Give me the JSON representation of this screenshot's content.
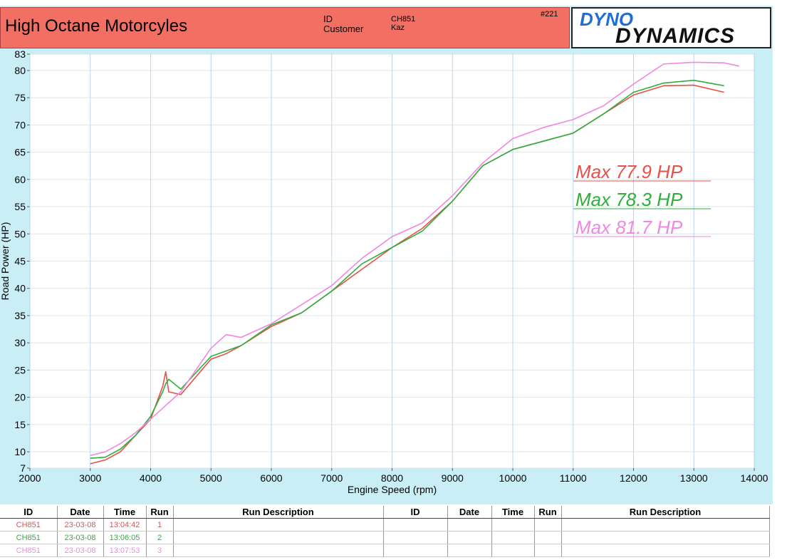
{
  "header": {
    "title": "High Octane Motorcyles",
    "id_label": "ID",
    "customer_label": "Customer",
    "id": "CH851",
    "customer": "Kaz",
    "number": "#221",
    "logo_top": "DYNO",
    "logo_bottom": "DYNAMICS"
  },
  "chart_data": {
    "type": "line",
    "x_label": "Engine Speed (rpm)",
    "y_label": "Road Power (HP)",
    "x": [
      3000,
      3250,
      3500,
      3750,
      4000,
      4200,
      4250,
      4300,
      4500,
      5000,
      5250,
      5500,
      6000,
      6500,
      7000,
      7500,
      8000,
      8500,
      9000,
      9500,
      10000,
      10500,
      11000,
      11500,
      12000,
      12500,
      13000,
      13500,
      13750
    ],
    "series": [
      {
        "color": "#e8504a",
        "values": [
          7.8,
          8.5,
          10,
          13,
          16,
          22,
          24.7,
          21,
          20.5,
          27,
          28,
          29.5,
          33,
          35.5,
          39.5,
          43.5,
          47.5,
          51,
          56,
          62.5,
          65.5,
          67,
          68.5,
          72,
          75.5,
          77.2,
          77.3,
          76,
          null
        ]
      },
      {
        "color": "#2fae3c",
        "values": [
          8.8,
          9,
          10.5,
          13,
          16.5,
          21,
          22.5,
          23.3,
          21.5,
          27.5,
          28.5,
          29.5,
          33.3,
          35.5,
          39.5,
          44.5,
          47.5,
          50.5,
          56,
          62.5,
          65.5,
          67,
          68.5,
          72,
          76,
          77.7,
          78.2,
          77.2,
          null
        ]
      },
      {
        "color": "#ee88e0",
        "values": [
          9.3,
          10,
          11.5,
          13.5,
          16,
          18,
          18.5,
          19,
          21,
          29,
          31.5,
          31,
          33.5,
          37,
          40.5,
          45.5,
          49.5,
          52,
          57,
          63,
          67.5,
          69.5,
          71,
          73.5,
          77.5,
          81.2,
          81.5,
          81.4,
          80.8
        ]
      }
    ],
    "annotations": [
      {
        "text": "Max 77.9 HP",
        "color": "#e8504a"
      },
      {
        "text": "Max 78.3 HP",
        "color": "#2fae3c"
      },
      {
        "text": "Max 81.7 HP",
        "color": "#ee88e0"
      }
    ],
    "xlim": [
      2000,
      14000
    ],
    "ylim": [
      7,
      83
    ],
    "xticks": [
      2000,
      3000,
      4000,
      5000,
      6000,
      7000,
      8000,
      9000,
      10000,
      11000,
      12000,
      13000,
      14000
    ],
    "yticks": [
      7,
      10,
      15,
      20,
      25,
      30,
      35,
      40,
      45,
      50,
      55,
      60,
      65,
      70,
      75,
      80,
      83
    ],
    "grid": true
  },
  "table": {
    "headers": [
      "ID",
      "Date",
      "Time",
      "Run",
      "Run Description",
      "ID",
      "Date",
      "Time",
      "Run",
      "Run Description"
    ],
    "rows": [
      {
        "color": "#e8504a",
        "cells": [
          "CH851",
          "23-03-08",
          "13:04:42",
          "1"
        ]
      },
      {
        "color": "#2fae3c",
        "cells": [
          "CH851",
          "23-03-08",
          "13:06:05",
          "2"
        ]
      },
      {
        "color": "#ee88e0",
        "cells": [
          "CH851",
          "23-03-08",
          "13:07:53",
          "3"
        ]
      }
    ]
  }
}
